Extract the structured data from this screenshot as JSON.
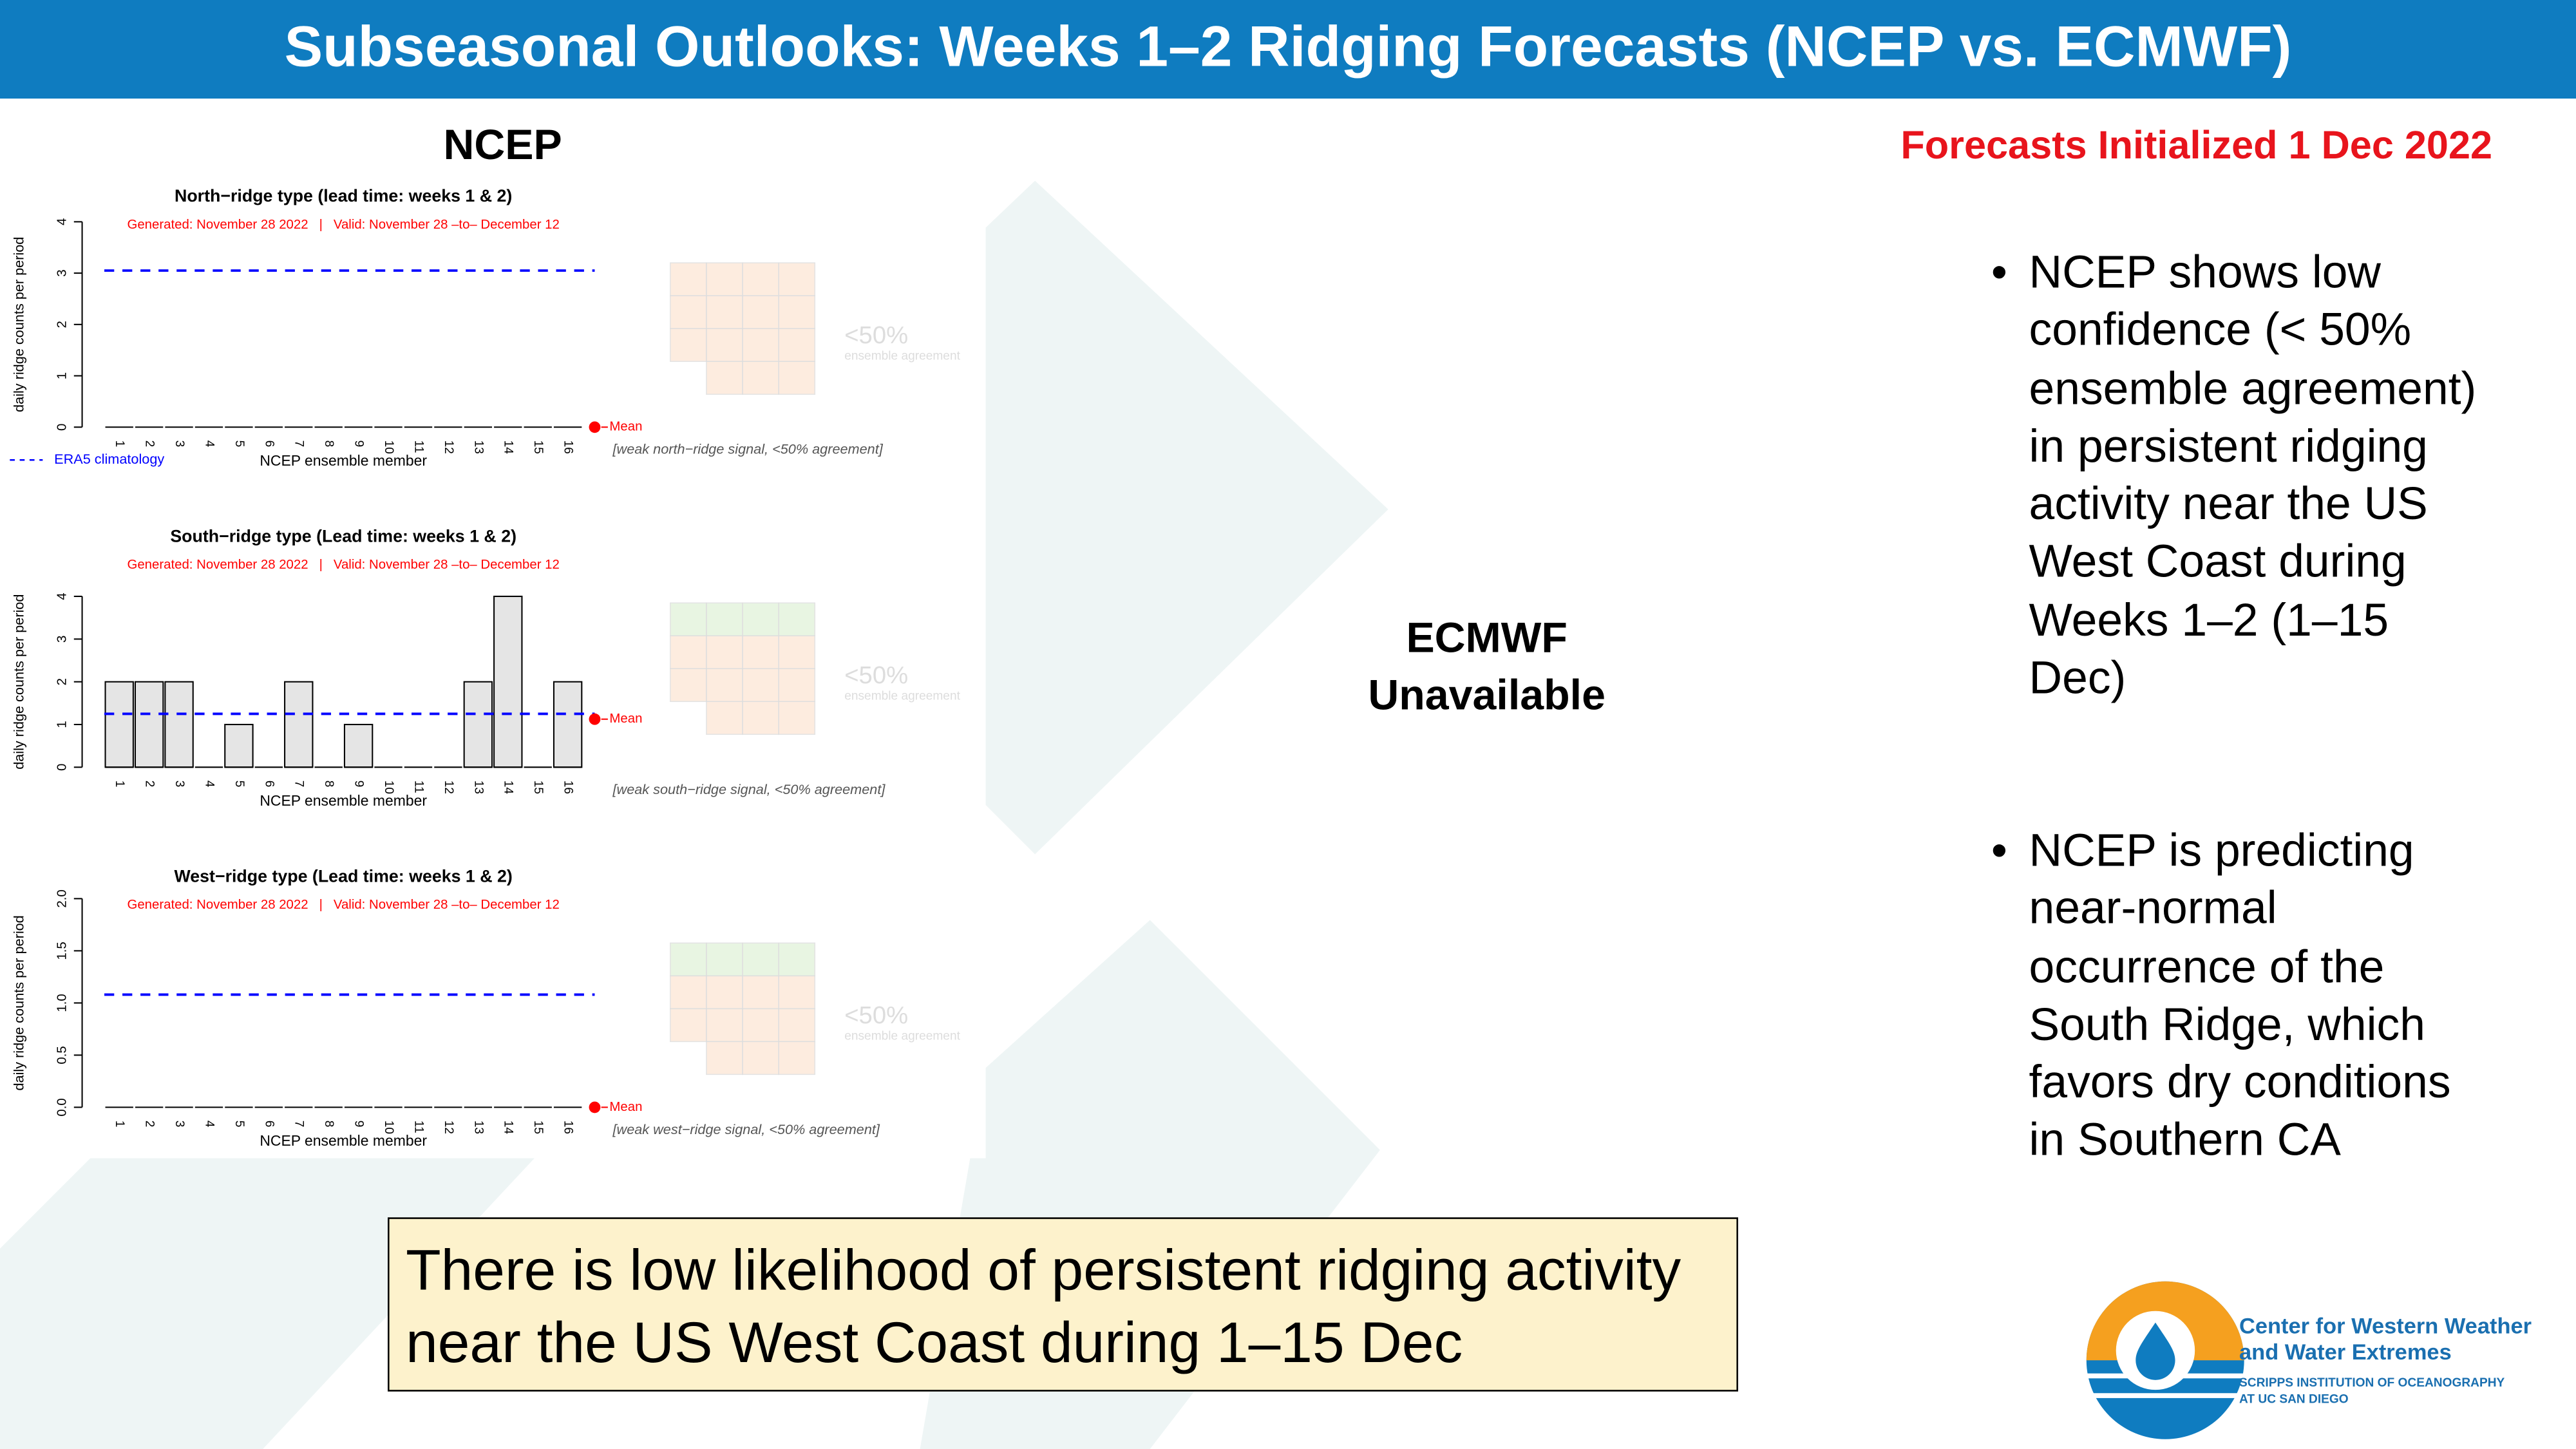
{
  "slide": {
    "title": "Subseasonal Outlooks: Weeks 1–2 Ridging Forecasts (NCEP vs. ECMWF)",
    "left_heading": "NCEP",
    "init_note": "Forecasts Initialized 1 Dec 2022",
    "ecmwf_status": [
      "ECMWF",
      "Unavailable"
    ],
    "bullets": [
      "NCEP shows low confidence (< 50% ensemble agreement) in persistent ridging activity near the US West Coast during Weeks 1–2 (1–15 Dec)",
      "NCEP is predicting near-normal occurrence of the South Ridge, which favors dry conditions in Southern CA"
    ],
    "summary": "There is low likelihood of persistent ridging activity near the US West Coast during 1–15 Dec",
    "logo": {
      "name_lines": [
        "Center for Western Weather",
        "and Water Extremes"
      ],
      "affiliation_lines": [
        "SCRIPPS INSTITUTION OF OCEANOGRAPHY",
        "AT UC SAN DIEGO"
      ]
    }
  },
  "chart_data": [
    {
      "type": "bar",
      "title": "North−ridge type (lead time: weeks 1 & 2)",
      "subtitle": "Generated: November 28 2022   |   Valid: November 28 –to– December 12",
      "xlabel": "NCEP ensemble member",
      "ylabel": "daily ridge counts per period",
      "categories": [
        "1",
        "2",
        "3",
        "4",
        "5",
        "6",
        "7",
        "8",
        "9",
        "10",
        "11",
        "12",
        "13",
        "14",
        "15",
        "16"
      ],
      "values": [
        0,
        0,
        0,
        0,
        0,
        0,
        0,
        0,
        0,
        0,
        0,
        0,
        0,
        0,
        0,
        0
      ],
      "color": "#e5e5e5",
      "ylim": [
        0,
        4
      ],
      "yticks": [
        0,
        1,
        2,
        3,
        4
      ],
      "climatology": {
        "name": "ERA5 climatology",
        "value": 3.05,
        "color": "#0000ff"
      },
      "mean": 0,
      "mean_label": "Mean",
      "mean_color": "#ff0000",
      "annotation": "[weak north−ridge signal, <50% agreement]",
      "map_label": "<50%",
      "map_sublabel": "ensemble agreement"
    },
    {
      "type": "bar",
      "title": "South−ridge type (Lead time: weeks 1 & 2)",
      "subtitle": "Generated: November 28 2022   |   Valid: November 28 –to– December 12",
      "xlabel": "NCEP ensemble member",
      "ylabel": "daily ridge counts per period",
      "categories": [
        "1",
        "2",
        "3",
        "4",
        "5",
        "6",
        "7",
        "8",
        "9",
        "10",
        "11",
        "12",
        "13",
        "14",
        "15",
        "16"
      ],
      "values": [
        2,
        2,
        2,
        0,
        1,
        0,
        2,
        0,
        1,
        0,
        0,
        0,
        2,
        4,
        0,
        2
      ],
      "color": "#e5e5e5",
      "ylim": [
        0,
        4
      ],
      "yticks": [
        0,
        1,
        2,
        3,
        4
      ],
      "climatology": {
        "value": 1.25,
        "color": "#0000ff"
      },
      "mean": 1.125,
      "mean_label": "Mean",
      "mean_color": "#ff0000",
      "annotation": "[weak south−ridge signal, <50% agreement]",
      "map_label": "<50%",
      "map_sublabel": "ensemble agreement"
    },
    {
      "type": "bar",
      "title": "West−ridge type (Lead time: weeks 1 & 2)",
      "subtitle": "Generated: November 28 2022   |   Valid: November 28 –to– December 12",
      "xlabel": "NCEP ensemble member",
      "ylabel": "daily ridge counts per period",
      "categories": [
        "1",
        "2",
        "3",
        "4",
        "5",
        "6",
        "7",
        "8",
        "9",
        "10",
        "11",
        "12",
        "13",
        "14",
        "15",
        "16"
      ],
      "values": [
        0,
        0,
        0,
        0,
        0,
        0,
        0,
        0,
        0,
        0,
        0,
        0,
        0,
        0,
        0,
        0
      ],
      "color": "#e5e5e5",
      "ylim": [
        0,
        2
      ],
      "yticks": [
        {
          "value": 0,
          "label": "0.0"
        },
        {
          "value": 0.5,
          "label": "0.5"
        },
        {
          "value": 1,
          "label": "1.0"
        },
        {
          "value": 1.5,
          "label": "1.5"
        },
        {
          "value": 2,
          "label": "2.0"
        }
      ],
      "climatology": {
        "value": 1.08,
        "color": "#0000ff"
      },
      "mean": 0,
      "mean_label": "Mean",
      "mean_color": "#ff0000",
      "annotation": "[weak west−ridge signal, <50% agreement]",
      "map_label": "<50%",
      "map_sublabel": "ensemble agreement"
    }
  ]
}
